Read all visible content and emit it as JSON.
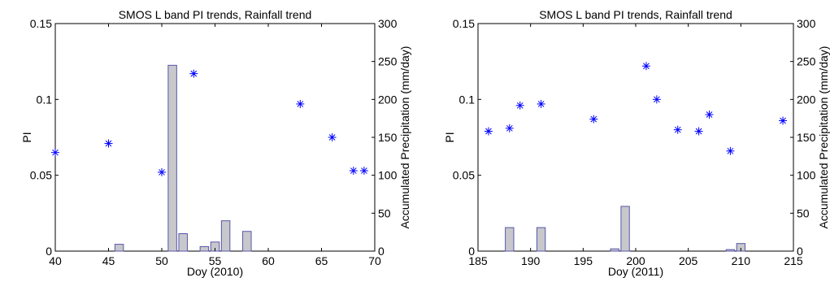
{
  "chart_data": [
    {
      "type": "bar+scatter",
      "title": "SMOS L band PI trends, Rainfall trend",
      "xlabel": "Doy (2010)",
      "ylabel": "PI",
      "y2label": "Accumulated Precipitation (mm/day)",
      "xlim": [
        40,
        70
      ],
      "ylim": [
        0,
        0.15
      ],
      "y2lim": [
        0,
        300
      ],
      "xticks": [
        "40",
        "45",
        "50",
        "55",
        "60",
        "65",
        "70"
      ],
      "yticks": [
        "0",
        "0.05",
        "0.1",
        "0.15"
      ],
      "y2ticks": [
        "0",
        "50",
        "100",
        "150",
        "200",
        "250",
        "300"
      ],
      "colors": {
        "scatter": "#0000ff",
        "bar_fill": "#c8c8cc",
        "bar_edge": "#5555aa"
      },
      "series": [
        {
          "kind": "bar",
          "axis": "y2",
          "x": [
            46,
            51,
            52,
            54,
            55,
            56,
            58
          ],
          "values": [
            9,
            245,
            23,
            6,
            12,
            40,
            26
          ]
        },
        {
          "kind": "scatter",
          "marker": "asterisk",
          "axis": "y",
          "x": [
            40,
            45,
            50,
            53,
            63,
            66,
            68,
            69
          ],
          "values": [
            0.065,
            0.071,
            0.052,
            0.117,
            0.097,
            0.075,
            0.053,
            0.053
          ]
        }
      ]
    },
    {
      "type": "bar+scatter",
      "title": "SMOS L band PI trends, Rainfall trend",
      "xlabel": "Doy (2011)",
      "ylabel": "PI",
      "y2label": "Accumulated Precipitation (mm/day)",
      "xlim": [
        185,
        215
      ],
      "ylim": [
        0,
        0.15
      ],
      "y2lim": [
        0,
        300
      ],
      "xticks": [
        "185",
        "190",
        "195",
        "200",
        "205",
        "210",
        "215"
      ],
      "yticks": [
        "0",
        "0.05",
        "0.1",
        "0.15"
      ],
      "y2ticks": [
        "0",
        "50",
        "100",
        "150",
        "200",
        "250",
        "300"
      ],
      "colors": {
        "scatter": "#0000ff",
        "bar_fill": "#c8c8cc",
        "bar_edge": "#5555aa"
      },
      "series": [
        {
          "kind": "bar",
          "axis": "y2",
          "x": [
            188,
            191,
            198,
            199,
            209,
            210
          ],
          "values": [
            31,
            31,
            3,
            59,
            2,
            10
          ]
        },
        {
          "kind": "scatter",
          "marker": "asterisk",
          "axis": "y",
          "x": [
            186,
            188,
            189,
            191,
            196,
            201,
            202,
            204,
            206,
            207,
            209,
            214
          ],
          "values": [
            0.079,
            0.081,
            0.096,
            0.097,
            0.087,
            0.122,
            0.1,
            0.08,
            0.079,
            0.09,
            0.066,
            0.086
          ]
        }
      ]
    }
  ]
}
